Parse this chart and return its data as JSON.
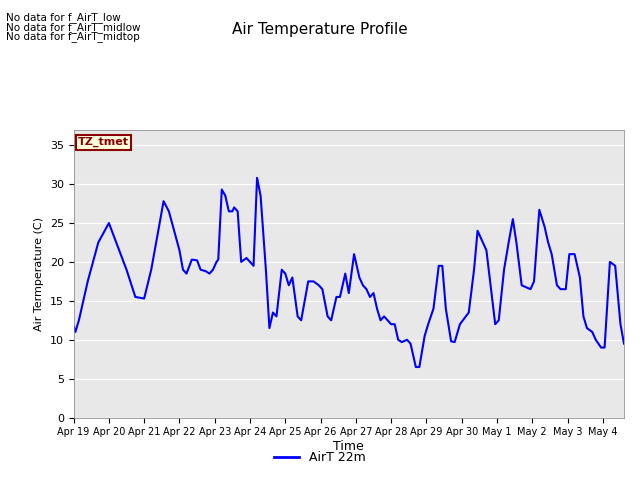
{
  "title": "Air Temperature Profile",
  "xlabel": "Time",
  "ylabel": "Air Termperature (C)",
  "ylim": [
    0,
    37
  ],
  "yticks": [
    0,
    5,
    10,
    15,
    20,
    25,
    30,
    35
  ],
  "line_color": "blue",
  "line_width": 1.5,
  "legend_label": "AirT 22m",
  "fig_bg_color": "#ffffff",
  "plot_bg_color": "#e8e8e8",
  "grid_color": "#ffffff",
  "no_data_texts": [
    "No data for f_AirT_low",
    "No data for f_AirT_midlow",
    "No data for f_AirT_midtop"
  ],
  "tz_label": "TZ_tmet",
  "x_tick_labels": [
    "Apr 19",
    "Apr 20",
    "Apr 21",
    "Apr 22",
    "Apr 23",
    "Apr 24",
    "Apr 25",
    "Apr 26",
    "Apr 27",
    "Apr 28",
    "Apr 29",
    "Apr 30",
    "May 1",
    "May 2",
    "May 3",
    "May 4"
  ],
  "time_series": [
    [
      0.0,
      11.8
    ],
    [
      0.05,
      11.0
    ],
    [
      0.15,
      12.5
    ],
    [
      0.4,
      17.5
    ],
    [
      0.7,
      22.5
    ],
    [
      1.0,
      25.0
    ],
    [
      1.25,
      22.0
    ],
    [
      1.5,
      19.0
    ],
    [
      1.75,
      15.5
    ],
    [
      2.0,
      15.3
    ],
    [
      2.2,
      19.0
    ],
    [
      2.4,
      24.0
    ],
    [
      2.55,
      27.8
    ],
    [
      2.7,
      26.5
    ],
    [
      3.0,
      21.5
    ],
    [
      3.1,
      19.0
    ],
    [
      3.2,
      18.5
    ],
    [
      3.35,
      20.3
    ],
    [
      3.5,
      20.2
    ],
    [
      3.6,
      19.0
    ],
    [
      3.75,
      18.8
    ],
    [
      3.85,
      18.5
    ],
    [
      3.95,
      19.0
    ],
    [
      4.05,
      20.0
    ],
    [
      4.1,
      20.3
    ],
    [
      4.2,
      29.3
    ],
    [
      4.3,
      28.5
    ],
    [
      4.4,
      26.5
    ],
    [
      4.5,
      26.5
    ],
    [
      4.55,
      27.0
    ],
    [
      4.65,
      26.5
    ],
    [
      4.75,
      20.0
    ],
    [
      4.9,
      20.5
    ],
    [
      5.0,
      20.0
    ],
    [
      5.1,
      19.5
    ],
    [
      5.2,
      30.8
    ],
    [
      5.3,
      28.5
    ],
    [
      5.45,
      19.0
    ],
    [
      5.55,
      11.5
    ],
    [
      5.65,
      13.5
    ],
    [
      5.75,
      13.0
    ],
    [
      5.9,
      19.0
    ],
    [
      6.0,
      18.5
    ],
    [
      6.1,
      17.0
    ],
    [
      6.2,
      18.0
    ],
    [
      6.35,
      13.0
    ],
    [
      6.45,
      12.5
    ],
    [
      6.55,
      15.0
    ],
    [
      6.65,
      17.5
    ],
    [
      6.8,
      17.5
    ],
    [
      6.95,
      17.0
    ],
    [
      7.05,
      16.5
    ],
    [
      7.2,
      13.0
    ],
    [
      7.3,
      12.5
    ],
    [
      7.45,
      15.5
    ],
    [
      7.55,
      15.5
    ],
    [
      7.7,
      18.5
    ],
    [
      7.8,
      16.0
    ],
    [
      7.95,
      21.0
    ],
    [
      8.1,
      18.0
    ],
    [
      8.2,
      17.0
    ],
    [
      8.3,
      16.5
    ],
    [
      8.4,
      15.5
    ],
    [
      8.5,
      16.0
    ],
    [
      8.6,
      14.0
    ],
    [
      8.7,
      12.5
    ],
    [
      8.8,
      13.0
    ],
    [
      8.9,
      12.5
    ],
    [
      9.0,
      12.0
    ],
    [
      9.1,
      12.0
    ],
    [
      9.2,
      10.0
    ],
    [
      9.3,
      9.7
    ],
    [
      9.45,
      10.0
    ],
    [
      9.55,
      9.5
    ],
    [
      9.7,
      6.5
    ],
    [
      9.8,
      6.5
    ],
    [
      9.95,
      10.5
    ],
    [
      10.05,
      12.0
    ],
    [
      10.2,
      14.0
    ],
    [
      10.35,
      19.5
    ],
    [
      10.45,
      19.5
    ],
    [
      10.55,
      14.0
    ],
    [
      10.7,
      9.8
    ],
    [
      10.8,
      9.7
    ],
    [
      10.95,
      12.0
    ],
    [
      11.2,
      13.5
    ],
    [
      11.35,
      19.0
    ],
    [
      11.45,
      24.0
    ],
    [
      11.55,
      23.0
    ],
    [
      11.7,
      21.5
    ],
    [
      11.95,
      12.0
    ],
    [
      12.05,
      12.5
    ],
    [
      12.2,
      19.0
    ],
    [
      12.35,
      23.0
    ],
    [
      12.45,
      25.5
    ],
    [
      12.55,
      22.5
    ],
    [
      12.7,
      17.0
    ],
    [
      12.95,
      16.5
    ],
    [
      13.05,
      17.5
    ],
    [
      13.2,
      26.7
    ],
    [
      13.35,
      24.5
    ],
    [
      13.45,
      22.5
    ],
    [
      13.55,
      21.0
    ],
    [
      13.7,
      17.0
    ],
    [
      13.8,
      16.5
    ],
    [
      13.95,
      16.5
    ],
    [
      14.05,
      21.0
    ],
    [
      14.2,
      21.0
    ],
    [
      14.35,
      18.0
    ],
    [
      14.45,
      13.0
    ],
    [
      14.55,
      11.5
    ],
    [
      14.7,
      11.0
    ],
    [
      14.8,
      10.0
    ],
    [
      14.95,
      9.0
    ],
    [
      15.05,
      9.0
    ],
    [
      15.2,
      20.0
    ],
    [
      15.35,
      19.5
    ],
    [
      15.5,
      12.0
    ],
    [
      15.6,
      9.5
    ]
  ]
}
